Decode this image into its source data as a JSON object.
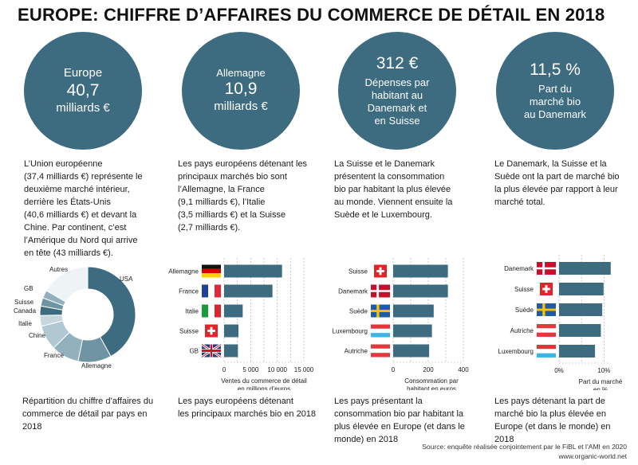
{
  "title": "EUROPE: CHIFFRE D’AFFAIRES DU COMMERCE DE DÉTAIL EN 2018",
  "colors": {
    "teal": "#3d6b7f",
    "grid": "#999999"
  },
  "circles": [
    {
      "line1": "Europe",
      "line2": "40,7",
      "line3": "milliards €"
    },
    {
      "line1": "Allemagne",
      "line2": "10,9",
      "line3": "milliards €"
    },
    {
      "line1": "312 €",
      "lines": [
        "Dépenses par",
        "habitant au",
        "Danemark et",
        "en Suisse"
      ]
    },
    {
      "line1": "11,5 %",
      "lines": [
        "Part du",
        "marché bio",
        "au Danemark"
      ]
    }
  ],
  "paragraphs": [
    [
      "L’Union européenne",
      "(37,4 milliards €) représente le",
      "deuxième marché intérieur,",
      "derrière les États-Unis",
      "(40,6 milliards €) et devant la",
      "Chine. Par continent, c’est",
      "l’Amérique du Nord qui arrive",
      "en tête (43 milliards €)."
    ],
    [
      "Les pays européens détenant les",
      "principaux marchés bio sont",
      "l’Allemagne, la France",
      "(9,1 milliards €), l’Italie",
      "(3,5 milliards €) et la Suisse",
      "(2,7 milliards €)."
    ],
    [
      "La Suisse et le Danemark",
      "présentent la consommation",
      "bio par habitant la plus élevée",
      "au monde. Viennent ensuite la",
      "Suède et le Luxembourg."
    ],
    [
      "Le Danemark, la Suisse et la",
      "Suède ont la part de marché bio",
      "la plus élevée par rapport à leur",
      "marché total."
    ]
  ],
  "captions": [
    [
      "Répartition du chiffre d’affaires du",
      "commerce de détail par pays en 2018"
    ],
    [
      "Les pays européens détenant",
      "les principaux marchés bio en 2018"
    ],
    [
      "Les pays présentant la",
      "consommation bio par habitant la",
      "plus élevée en Europe (et dans le",
      "monde) en 2018"
    ],
    [
      "Les pays détenant la part de",
      "marché bio la plus élevée en",
      "Europe (et dans le monde) en",
      "2018"
    ]
  ],
  "source": [
    "Source: enquête réalisée conjointement par le FiBL et l’AMI en 2020",
    "www.organic-world.net"
  ],
  "chart_data": [
    {
      "type": "pie",
      "style": "donut",
      "categories": [
        "USA",
        "Allemagne",
        "France",
        "Chine",
        "Italie",
        "Canada",
        "Suisse",
        "GB",
        "Autres"
      ],
      "values": [
        40.6,
        10.9,
        9.1,
        8.1,
        3.5,
        3.1,
        2.7,
        2.6,
        16.1
      ],
      "colors": [
        "#3d6b7f",
        "#6f94a4",
        "#93b0bd",
        "#b1c7d1",
        "#c5d6dd",
        "#3d6b7f",
        "#6f94a4",
        "#93b0bd",
        "#eef3f5"
      ]
    },
    {
      "type": "bar",
      "orientation": "horizontal",
      "categories": [
        "Allemagne",
        "France",
        "Italie",
        "Suisse",
        "GB"
      ],
      "flags": [
        "germany",
        "france",
        "italy",
        "switzerland",
        "uk"
      ],
      "values": [
        10900,
        9100,
        3500,
        2700,
        2600
      ],
      "xlim": [
        0,
        15000
      ],
      "xticks": [
        0,
        5000,
        10000,
        15000
      ],
      "xtick_labels": [
        "0",
        "5 000",
        "10 000",
        "15 000"
      ],
      "xlabel": [
        "Ventes du commerce de détail",
        "en millions d’euros"
      ],
      "grid": true
    },
    {
      "type": "bar",
      "orientation": "horizontal",
      "categories": [
        "Suisse",
        "Danemark",
        "Suède",
        "Luxembourg",
        "Autriche"
      ],
      "flags": [
        "switzerland",
        "denmark",
        "sweden",
        "luxembourg",
        "austria"
      ],
      "values": [
        312,
        312,
        231,
        221,
        205
      ],
      "xlim": [
        0,
        400
      ],
      "xticks": [
        0,
        200,
        400
      ],
      "xtick_labels": [
        "0",
        "200",
        "400"
      ],
      "xlabel": [
        "Consommation par",
        "habitant en euros"
      ],
      "grid": true
    },
    {
      "type": "bar",
      "orientation": "horizontal",
      "categories": [
        "Danemark",
        "Suisse",
        "Suède",
        "Autriche",
        "Luxembourg"
      ],
      "flags": [
        "denmark",
        "switzerland",
        "sweden",
        "austria",
        "luxembourg"
      ],
      "values": [
        11.5,
        9.9,
        9.6,
        9.3,
        8.0
      ],
      "xlim": [
        0,
        11
      ],
      "xticks": [
        0,
        10
      ],
      "xtick_labels": [
        "0%",
        "10%"
      ],
      "xlabel": [
        "Part du marché",
        "en %"
      ],
      "grid": true
    }
  ]
}
